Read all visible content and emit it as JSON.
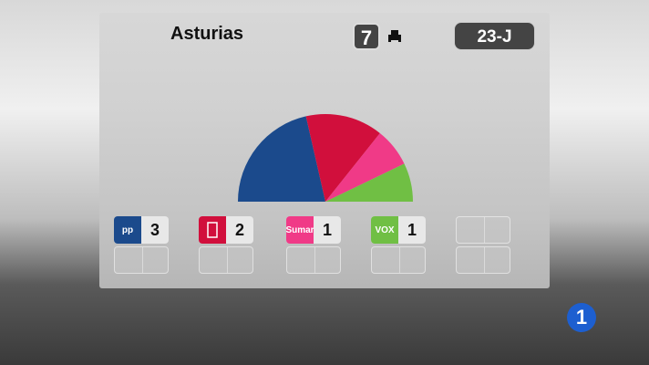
{
  "header": {
    "region": "Asturias",
    "total_seats": "7",
    "seat_icon": "armchair-icon",
    "election": "23-J"
  },
  "chart_data": {
    "type": "pie",
    "subtype": "hemicycle",
    "categories": [
      "PP",
      "PSOE",
      "Sumar",
      "VOX"
    ],
    "values": [
      3,
      2,
      1,
      1
    ],
    "colors": [
      "#1b4a8c",
      "#d10f3c",
      "#f03a87",
      "#70bf44"
    ]
  },
  "parties": [
    {
      "name": "PP",
      "logo_text": "pp",
      "seats": "3",
      "color": "#1b4a8c"
    },
    {
      "name": "PSOE",
      "logo_text": "",
      "seats": "2",
      "color": "#d10f3c"
    },
    {
      "name": "Sumar",
      "logo_text": "Sumar",
      "seats": "1",
      "color": "#f03a87"
    },
    {
      "name": "VOX",
      "logo_text": "VOX",
      "seats": "1",
      "color": "#70bf44"
    }
  ],
  "channel_logo": "1"
}
